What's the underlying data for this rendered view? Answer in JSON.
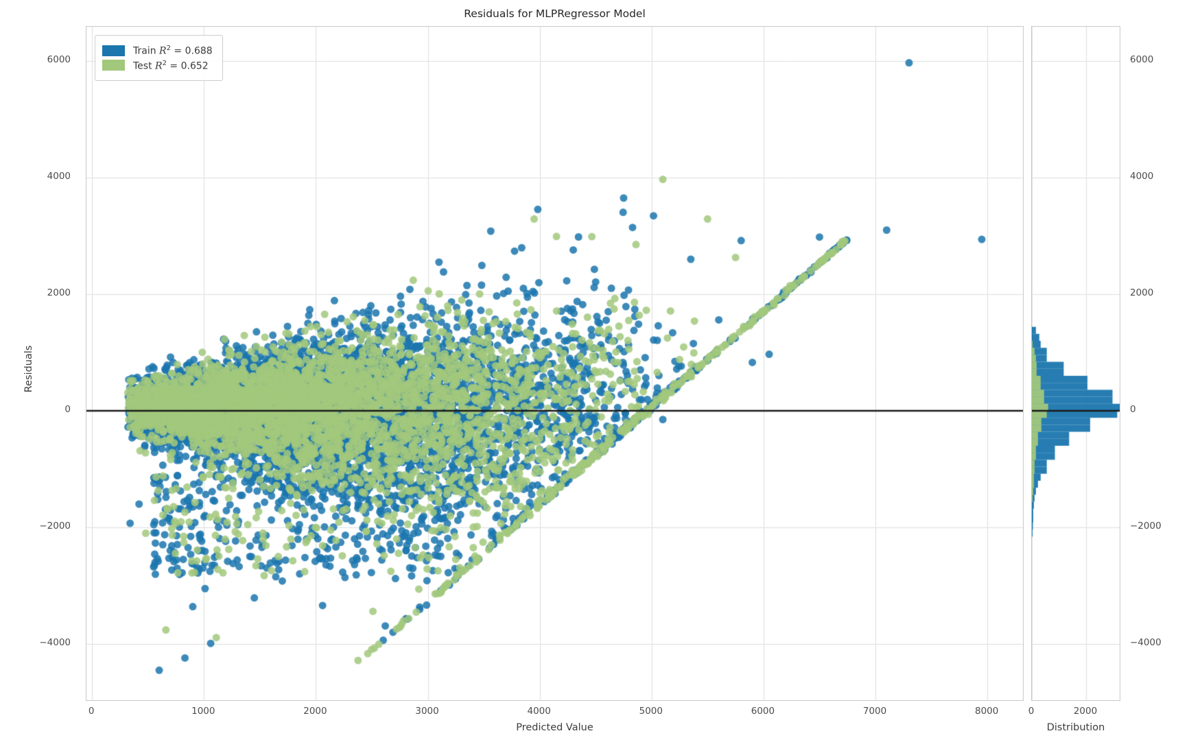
{
  "title": "Residuals for MLPRegressor Model",
  "colors": {
    "train": "#1b76ae",
    "test": "#a2c87c",
    "zero_line": "#1a1a1a",
    "grid": "#dedede",
    "spine": "#c9c9c9",
    "tick_text": "#4b4b4b"
  },
  "legend": {
    "items": [
      {
        "set": "Train",
        "r2": "0.688",
        "color_key": "train"
      },
      {
        "set": "Test",
        "r2": "0.652",
        "color_key": "test"
      }
    ]
  },
  "main_axes": {
    "xlabel": "Predicted Value",
    "ylabel": "Residuals",
    "xlim": [
      -50,
      8330
    ],
    "ylim": [
      -4988,
      6588
    ],
    "x_ticks": [
      {
        "v": 0,
        "label": "0"
      },
      {
        "v": 1000,
        "label": "1000"
      },
      {
        "v": 2000,
        "label": "2000"
      },
      {
        "v": 3000,
        "label": "3000"
      },
      {
        "v": 4000,
        "label": "4000"
      },
      {
        "v": 5000,
        "label": "5000"
      },
      {
        "v": 6000,
        "label": "6000"
      },
      {
        "v": 7000,
        "label": "7000"
      },
      {
        "v": 8000,
        "label": "8000"
      }
    ],
    "y_ticks": [
      {
        "v": -4000,
        "label": "−4000"
      },
      {
        "v": -2000,
        "label": "−2000"
      },
      {
        "v": 0,
        "label": "0"
      },
      {
        "v": 2000,
        "label": "2000"
      },
      {
        "v": 4000,
        "label": "4000"
      },
      {
        "v": 6000,
        "label": "6000"
      }
    ]
  },
  "hist_axes": {
    "xlabel": "Distribution",
    "xlim": [
      0,
      3290
    ],
    "x_ticks": [
      {
        "v": 0,
        "label": "0"
      },
      {
        "v": 2000,
        "label": "2000"
      }
    ]
  },
  "chart_data": {
    "type": "scatter",
    "title": "Residuals for MLPRegressor Model",
    "xlabel": "Predicted Value",
    "ylabel": "Residuals",
    "legend_position": "upper left",
    "grid": true,
    "series": [
      {
        "name": "Train",
        "r_squared": 0.688,
        "color": "#1b76ae"
      },
      {
        "name": "Test",
        "r_squared": 0.652,
        "color": "#a2c87c"
      }
    ],
    "zero_line_y": 0,
    "scatter_spec": {
      "seed": 42,
      "point_radius": 5.5,
      "alpha": 0.85,
      "cloud": {
        "n_train": 5200,
        "n_test": 3800,
        "pred_min": 320,
        "pred_span": 4780,
        "pred_shape_pow": 1.6,
        "resid_mean": 80,
        "sd_up_base": 140,
        "sd_up_slope": 0.21,
        "sd_down_base": 170,
        "sd_down_slope": 0.27,
        "test_sd_scale": 0.88
      },
      "diagonal_edge": {
        "from": [
          2200,
          -4600
        ],
        "to": [
          6750,
          2950
        ],
        "n": 330,
        "jitter_sd": 20,
        "t_pow": 0.62,
        "test_fraction": 0.55
      },
      "lower_band": {
        "pred_range": [
          550,
          3300
        ],
        "resid_start": -1100,
        "resid_span": -1750,
        "n_train": 310,
        "n_test": 130
      },
      "mid_sparse": {
        "pred_range": [
          3250,
          5400
        ],
        "resid_mean": 300,
        "resid_sd": 750,
        "n": 230,
        "test_fraction": 0.4
      },
      "outliers_train": [
        [
          7300,
          5970
        ],
        [
          4750,
          3650
        ],
        [
          7100,
          3100
        ],
        [
          6500,
          2980
        ],
        [
          7950,
          2940
        ],
        [
          5800,
          2920
        ],
        [
          4300,
          2760
        ],
        [
          5350,
          2600
        ],
        [
          3100,
          2550
        ],
        [
          3700,
          2290
        ],
        [
          4500,
          2210
        ],
        [
          3350,
          2150
        ],
        [
          4850,
          1620
        ],
        [
          5600,
          1560
        ],
        [
          6050,
          970
        ],
        [
          5900,
          830
        ],
        [
          4950,
          460
        ],
        [
          5100,
          -150
        ],
        [
          4650,
          -380
        ],
        [
          600,
          -4450
        ],
        [
          830,
          -4240
        ],
        [
          1060,
          -3990
        ],
        [
          900,
          -3360
        ],
        [
          1450,
          -3210
        ],
        [
          1010,
          -3050
        ],
        [
          2060,
          -3340
        ],
        [
          2620,
          -3690
        ],
        [
          1700,
          -2920
        ],
        [
          2260,
          -2860
        ],
        [
          760,
          -2700
        ],
        [
          560,
          -2460
        ],
        [
          1260,
          -2620
        ],
        [
          340,
          -1930
        ],
        [
          420,
          -1600
        ]
      ],
      "outliers_test": [
        [
          5100,
          3970
        ],
        [
          3950,
          3290
        ],
        [
          5500,
          3290
        ],
        [
          4150,
          2990
        ],
        [
          5750,
          2630
        ],
        [
          2870,
          2240
        ],
        [
          3800,
          1660
        ],
        [
          4700,
          830
        ],
        [
          5050,
          660
        ],
        [
          660,
          -3760
        ],
        [
          1110,
          -3890
        ],
        [
          2510,
          -3440
        ],
        [
          1900,
          -2760
        ],
        [
          820,
          -2260
        ],
        [
          2920,
          -3060
        ],
        [
          480,
          -2100
        ]
      ]
    },
    "histogram": {
      "orientation": "horizontal",
      "bin_start": -2160,
      "bin_width": 120,
      "train_counts": [
        25,
        38,
        50,
        50,
        75,
        100,
        150,
        225,
        325,
        550,
        550,
        850,
        850,
        1375,
        1375,
        2150,
        2150,
        3150,
        3250,
        2975,
        2975,
        2050,
        2050,
        1175,
        1175,
        550,
        550,
        325,
        275,
        150
      ],
      "test_counts": [
        0,
        0,
        0,
        0,
        0,
        25,
        50,
        75,
        75,
        100,
        100,
        150,
        150,
        225,
        225,
        350,
        350,
        550,
        600,
        450,
        450,
        325,
        325,
        175,
        175,
        150,
        100,
        25,
        0,
        0
      ]
    }
  }
}
